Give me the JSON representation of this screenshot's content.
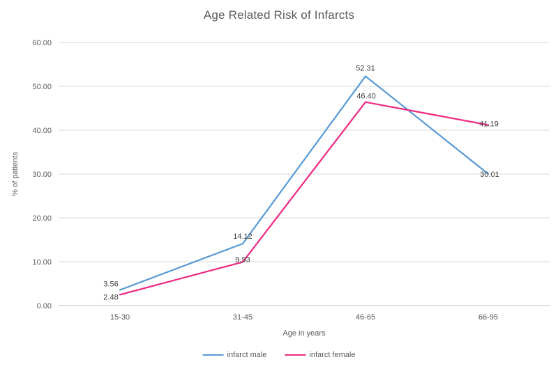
{
  "chart_data": {
    "type": "line",
    "title": "Age Related Risk of Infarcts",
    "xlabel": "Age in years",
    "ylabel": "% of patients",
    "categories": [
      "15-30",
      "31-45",
      "46-65",
      "66-95"
    ],
    "series": [
      {
        "name": "infarct male",
        "color": "#5B9BD5",
        "values": [
          3.56,
          14.12,
          52.31,
          30.01
        ],
        "value_labels": [
          "3.56",
          "14.12",
          "52.31",
          "30.01"
        ],
        "label_offsets": [
          [
            -13,
            -5
          ],
          [
            0,
            -7
          ],
          [
            0,
            -8
          ],
          [
            2,
            4
          ]
        ]
      },
      {
        "name": "infarct female",
        "color": "#EE2A83",
        "values": [
          2.48,
          9.93,
          46.4,
          41.19
        ],
        "value_labels": [
          "2.48",
          "9.93",
          "46.40",
          "41.19"
        ],
        "label_offsets": [
          [
            -13,
            7
          ],
          [
            0,
            0
          ],
          [
            1,
            -5
          ],
          [
            1,
            2
          ]
        ]
      }
    ],
    "ylim": [
      0,
      60
    ],
    "y_ticks": [
      "0.00",
      "10.00",
      "20.00",
      "30.00",
      "40.00",
      "50.00",
      "60.00"
    ],
    "grid": "horizontal",
    "legend_position": "bottom",
    "colors": {
      "gridline": "#D9D9D9",
      "axis_line": "#BFBFBF",
      "tick_text": "#595959",
      "data_label_text": "#404040"
    }
  }
}
